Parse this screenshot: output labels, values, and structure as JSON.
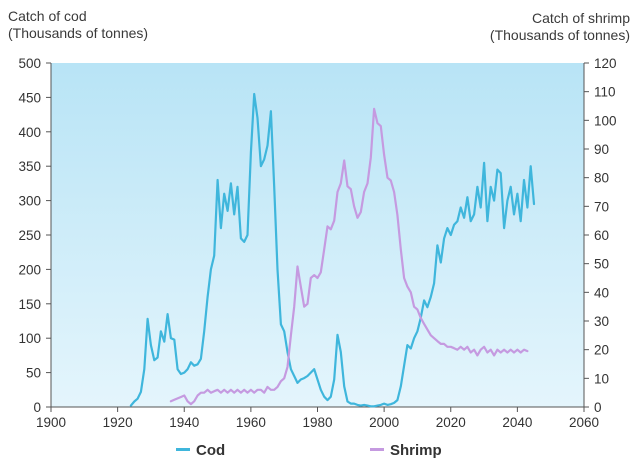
{
  "chart_data": {
    "type": "line",
    "left_axis_title": [
      "Catch of cod",
      "(Thousands of tonnes)"
    ],
    "right_axis_title": [
      "Catch of shrimp",
      "(Thousands of tonnes)"
    ],
    "x_ticks": [
      1900,
      1920,
      1940,
      1960,
      1980,
      2000,
      2020,
      2040,
      2060
    ],
    "y_left_ticks": [
      0,
      50,
      100,
      150,
      200,
      250,
      300,
      350,
      400,
      450,
      500
    ],
    "y_right_ticks": [
      0,
      10,
      20,
      30,
      40,
      50,
      60,
      70,
      80,
      90,
      100,
      110,
      120
    ],
    "xlim": [
      1900,
      2060
    ],
    "ylim_left": [
      0,
      500
    ],
    "ylim_right": [
      0,
      120
    ],
    "plot_background": "#c8ecf8",
    "series": [
      {
        "name": "Cod",
        "axis": "left",
        "color": "#3fb6dc",
        "points": [
          [
            1924,
            2
          ],
          [
            1925,
            8
          ],
          [
            1926,
            12
          ],
          [
            1927,
            22
          ],
          [
            1928,
            55
          ],
          [
            1929,
            128
          ],
          [
            1930,
            90
          ],
          [
            1931,
            68
          ],
          [
            1932,
            72
          ],
          [
            1933,
            110
          ],
          [
            1934,
            95
          ],
          [
            1935,
            135
          ],
          [
            1936,
            100
          ],
          [
            1937,
            98
          ],
          [
            1938,
            55
          ],
          [
            1939,
            48
          ],
          [
            1940,
            50
          ],
          [
            1941,
            55
          ],
          [
            1942,
            65
          ],
          [
            1943,
            60
          ],
          [
            1944,
            62
          ],
          [
            1945,
            70
          ],
          [
            1946,
            110
          ],
          [
            1947,
            160
          ],
          [
            1948,
            200
          ],
          [
            1949,
            220
          ],
          [
            1950,
            330
          ],
          [
            1951,
            260
          ],
          [
            1952,
            310
          ],
          [
            1953,
            285
          ],
          [
            1954,
            325
          ],
          [
            1955,
            280
          ],
          [
            1956,
            320
          ],
          [
            1957,
            245
          ],
          [
            1958,
            240
          ],
          [
            1959,
            250
          ],
          [
            1960,
            370
          ],
          [
            1961,
            455
          ],
          [
            1962,
            420
          ],
          [
            1963,
            350
          ],
          [
            1964,
            360
          ],
          [
            1965,
            380
          ],
          [
            1966,
            430
          ],
          [
            1967,
            320
          ],
          [
            1968,
            200
          ],
          [
            1969,
            120
          ],
          [
            1970,
            110
          ],
          [
            1971,
            80
          ],
          [
            1972,
            55
          ],
          [
            1973,
            45
          ],
          [
            1974,
            35
          ],
          [
            1975,
            40
          ],
          [
            1976,
            42
          ],
          [
            1977,
            45
          ],
          [
            1978,
            50
          ],
          [
            1979,
            55
          ],
          [
            1980,
            40
          ],
          [
            1981,
            25
          ],
          [
            1982,
            15
          ],
          [
            1983,
            10
          ],
          [
            1984,
            15
          ],
          [
            1985,
            40
          ],
          [
            1986,
            105
          ],
          [
            1987,
            80
          ],
          [
            1988,
            30
          ],
          [
            1989,
            8
          ],
          [
            1990,
            5
          ],
          [
            1991,
            5
          ],
          [
            1992,
            3
          ],
          [
            1993,
            2
          ],
          [
            1994,
            3
          ],
          [
            1995,
            2
          ],
          [
            1996,
            1
          ],
          [
            1997,
            1
          ],
          [
            1998,
            2
          ],
          [
            1999,
            3
          ],
          [
            2000,
            5
          ],
          [
            2001,
            3
          ],
          [
            2002,
            4
          ],
          [
            2003,
            6
          ],
          [
            2004,
            10
          ],
          [
            2005,
            30
          ],
          [
            2006,
            60
          ],
          [
            2007,
            90
          ],
          [
            2008,
            85
          ],
          [
            2009,
            100
          ],
          [
            2010,
            110
          ],
          [
            2011,
            130
          ],
          [
            2012,
            155
          ],
          [
            2013,
            145
          ],
          [
            2014,
            160
          ],
          [
            2015,
            180
          ],
          [
            2016,
            235
          ],
          [
            2017,
            210
          ],
          [
            2018,
            245
          ],
          [
            2019,
            260
          ],
          [
            2020,
            250
          ],
          [
            2021,
            265
          ],
          [
            2022,
            270
          ],
          [
            2023,
            290
          ],
          [
            2024,
            275
          ],
          [
            2025,
            305
          ],
          [
            2026,
            270
          ],
          [
            2027,
            280
          ],
          [
            2028,
            320
          ],
          [
            2029,
            290
          ],
          [
            2030,
            355
          ],
          [
            2031,
            270
          ],
          [
            2032,
            320
          ],
          [
            2033,
            300
          ],
          [
            2034,
            345
          ],
          [
            2035,
            340
          ],
          [
            2036,
            260
          ],
          [
            2037,
            300
          ],
          [
            2038,
            320
          ],
          [
            2039,
            280
          ],
          [
            2040,
            310
          ],
          [
            2041,
            270
          ],
          [
            2042,
            330
          ],
          [
            2043,
            290
          ],
          [
            2044,
            350
          ],
          [
            2045,
            295
          ]
        ]
      },
      {
        "name": "Shrimp",
        "axis": "right",
        "color": "#c59ae0",
        "points": [
          [
            1936,
            2
          ],
          [
            1937,
            2.5
          ],
          [
            1938,
            3
          ],
          [
            1939,
            3.5
          ],
          [
            1940,
            4
          ],
          [
            1941,
            2
          ],
          [
            1942,
            1
          ],
          [
            1943,
            2
          ],
          [
            1944,
            4
          ],
          [
            1945,
            5
          ],
          [
            1946,
            5
          ],
          [
            1947,
            6
          ],
          [
            1948,
            5
          ],
          [
            1949,
            5.5
          ],
          [
            1950,
            6
          ],
          [
            1951,
            5
          ],
          [
            1952,
            6
          ],
          [
            1953,
            5
          ],
          [
            1954,
            6
          ],
          [
            1955,
            5
          ],
          [
            1956,
            6
          ],
          [
            1957,
            5
          ],
          [
            1958,
            6
          ],
          [
            1959,
            5
          ],
          [
            1960,
            6
          ],
          [
            1961,
            5
          ],
          [
            1962,
            6
          ],
          [
            1963,
            6
          ],
          [
            1964,
            5
          ],
          [
            1965,
            7
          ],
          [
            1966,
            6
          ],
          [
            1967,
            6
          ],
          [
            1968,
            7
          ],
          [
            1969,
            9
          ],
          [
            1970,
            10
          ],
          [
            1971,
            14
          ],
          [
            1972,
            25
          ],
          [
            1973,
            35
          ],
          [
            1974,
            49
          ],
          [
            1975,
            42
          ],
          [
            1976,
            35
          ],
          [
            1977,
            36
          ],
          [
            1978,
            45
          ],
          [
            1979,
            46
          ],
          [
            1980,
            45
          ],
          [
            1981,
            47
          ],
          [
            1982,
            55
          ],
          [
            1983,
            63
          ],
          [
            1984,
            62
          ],
          [
            1985,
            65
          ],
          [
            1986,
            75
          ],
          [
            1987,
            78
          ],
          [
            1988,
            86
          ],
          [
            1989,
            77
          ],
          [
            1990,
            76
          ],
          [
            1991,
            70
          ],
          [
            1992,
            66
          ],
          [
            1993,
            68
          ],
          [
            1994,
            75
          ],
          [
            1995,
            78
          ],
          [
            1996,
            87
          ],
          [
            1997,
            104
          ],
          [
            1998,
            99
          ],
          [
            1999,
            98
          ],
          [
            2000,
            88
          ],
          [
            2001,
            80
          ],
          [
            2002,
            79
          ],
          [
            2003,
            75
          ],
          [
            2004,
            67
          ],
          [
            2005,
            55
          ],
          [
            2006,
            45
          ],
          [
            2007,
            42
          ],
          [
            2008,
            40
          ],
          [
            2009,
            35
          ],
          [
            2010,
            34
          ],
          [
            2011,
            31
          ],
          [
            2012,
            29
          ],
          [
            2013,
            27
          ],
          [
            2014,
            25
          ],
          [
            2015,
            24
          ],
          [
            2016,
            23
          ],
          [
            2017,
            22
          ],
          [
            2018,
            22
          ],
          [
            2019,
            21
          ],
          [
            2020,
            21
          ],
          [
            2021,
            20.5
          ],
          [
            2022,
            20
          ],
          [
            2023,
            21
          ],
          [
            2024,
            20
          ],
          [
            2025,
            21
          ],
          [
            2026,
            19
          ],
          [
            2027,
            20
          ],
          [
            2028,
            18
          ],
          [
            2029,
            20
          ],
          [
            2030,
            21
          ],
          [
            2031,
            19
          ],
          [
            2032,
            20
          ],
          [
            2033,
            18
          ],
          [
            2034,
            20
          ],
          [
            2035,
            19
          ],
          [
            2036,
            20
          ],
          [
            2037,
            19
          ],
          [
            2038,
            20
          ],
          [
            2039,
            19
          ],
          [
            2040,
            20
          ],
          [
            2041,
            19
          ],
          [
            2042,
            20
          ],
          [
            2043,
            19.5
          ]
        ]
      }
    ]
  },
  "legend": {
    "cod_label": "Cod",
    "shrimp_label": "Shrimp"
  }
}
